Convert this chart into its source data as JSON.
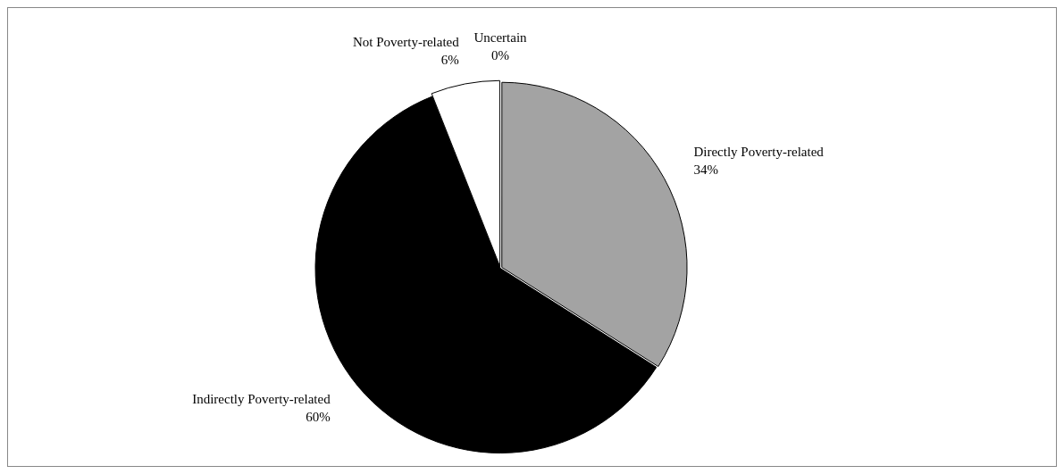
{
  "chart_data": {
    "type": "pie",
    "categories": [
      "Directly Poverty-related",
      "Indirectly Poverty-related",
      "Not Poverty-related",
      "Uncertain"
    ],
    "values": [
      34,
      60,
      6,
      0
    ],
    "colors": [
      "#a3a3a3",
      "#000000",
      "#ffffff",
      "#ffffff"
    ],
    "value_labels": [
      "34%",
      "60%",
      "6%",
      "0%"
    ],
    "legend": false
  }
}
